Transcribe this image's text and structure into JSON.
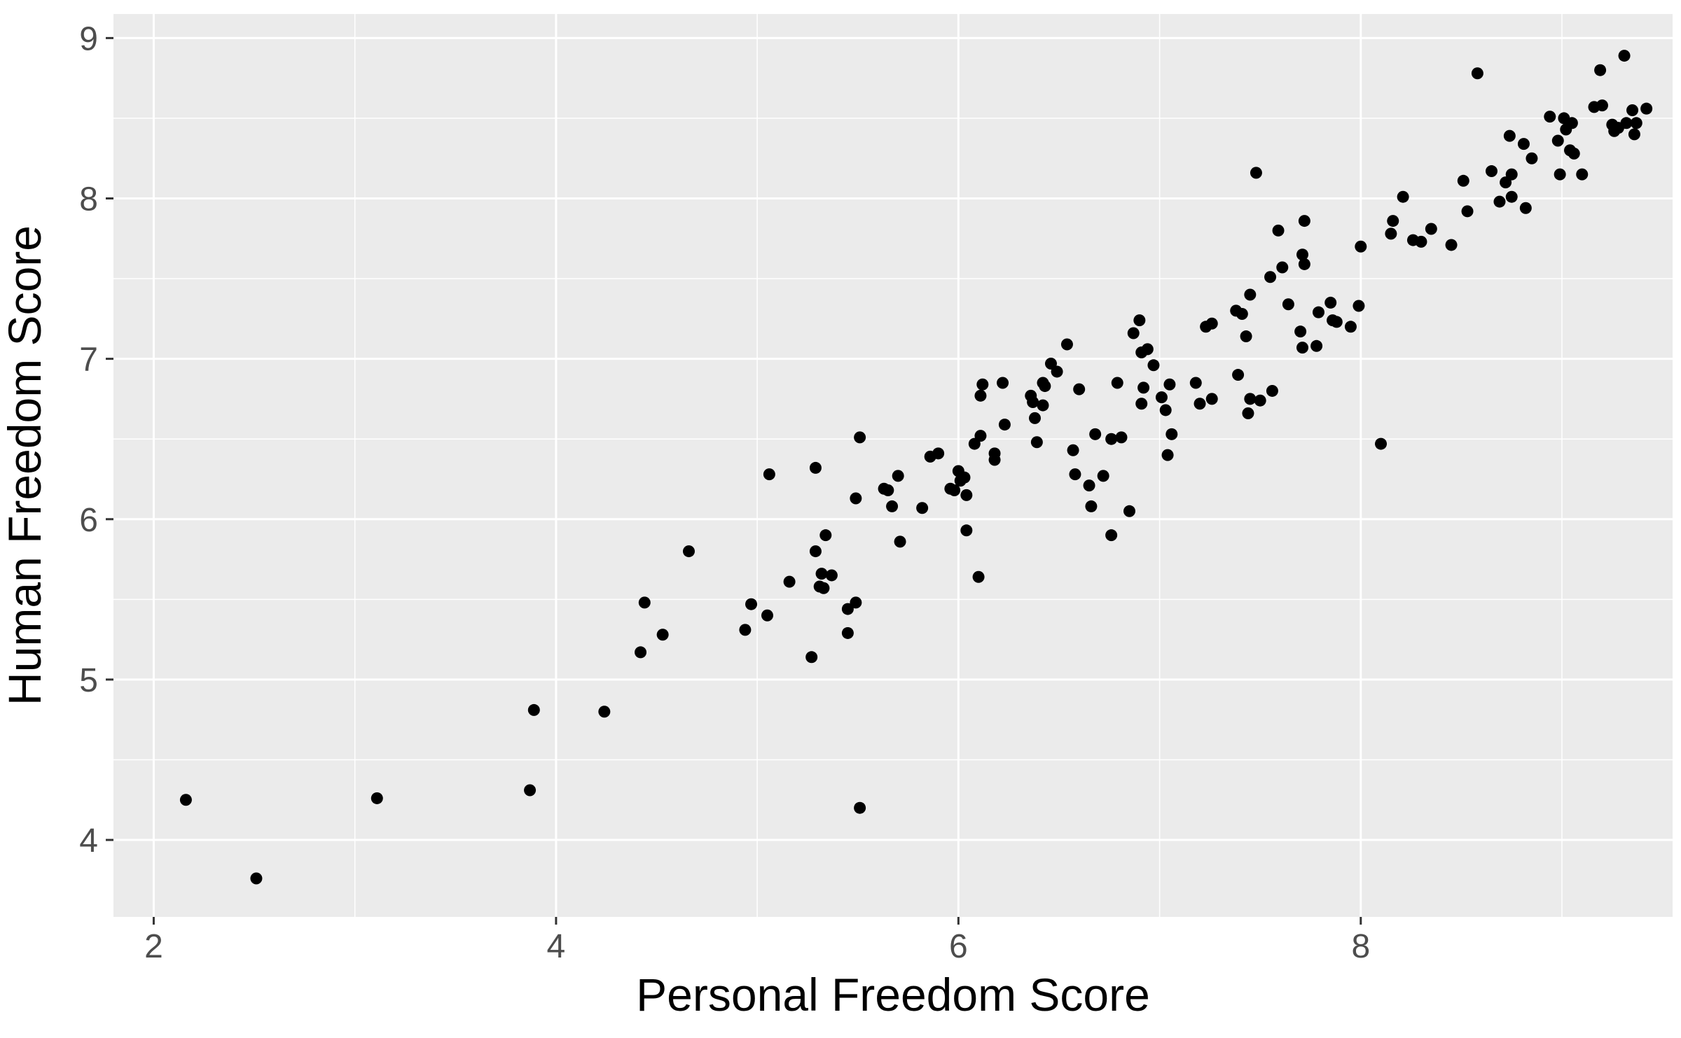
{
  "chart_data": {
    "type": "scatter",
    "title": "",
    "xlabel": "Personal Freedom Score",
    "ylabel": "Human Freedom Score",
    "xlim": [
      1.8,
      9.55
    ],
    "ylim": [
      3.52,
      9.15
    ],
    "x_ticks": [
      2,
      4,
      6,
      8
    ],
    "y_ticks": [
      4,
      5,
      6,
      7,
      8,
      9
    ],
    "grid": true,
    "legend": "none",
    "colors": {
      "panel": "#ebebeb",
      "grid": "#ffffff",
      "point": "#000000",
      "tick": "#333333"
    },
    "points": [
      [
        2.16,
        4.25
      ],
      [
        2.51,
        3.76
      ],
      [
        3.11,
        4.26
      ],
      [
        3.87,
        4.31
      ],
      [
        3.89,
        4.81
      ],
      [
        4.24,
        4.8
      ],
      [
        4.42,
        5.17
      ],
      [
        4.44,
        5.48
      ],
      [
        4.53,
        5.28
      ],
      [
        4.66,
        5.8
      ],
      [
        4.94,
        5.31
      ],
      [
        4.97,
        5.47
      ],
      [
        5.05,
        5.4
      ],
      [
        5.06,
        6.28
      ],
      [
        5.16,
        5.61
      ],
      [
        5.27,
        5.14
      ],
      [
        5.29,
        5.8
      ],
      [
        5.29,
        6.32
      ],
      [
        5.31,
        5.58
      ],
      [
        5.32,
        5.66
      ],
      [
        5.33,
        5.57
      ],
      [
        5.34,
        5.9
      ],
      [
        5.37,
        5.65
      ],
      [
        5.45,
        5.44
      ],
      [
        5.45,
        5.29
      ],
      [
        5.49,
        5.48
      ],
      [
        5.49,
        6.13
      ],
      [
        5.51,
        6.51
      ],
      [
        5.51,
        4.2
      ],
      [
        5.63,
        6.19
      ],
      [
        5.65,
        6.18
      ],
      [
        5.67,
        6.08
      ],
      [
        5.7,
        6.27
      ],
      [
        5.71,
        5.86
      ],
      [
        5.82,
        6.07
      ],
      [
        5.86,
        6.39
      ],
      [
        5.9,
        6.41
      ],
      [
        5.96,
        6.19
      ],
      [
        5.98,
        6.18
      ],
      [
        6.0,
        6.3
      ],
      [
        6.01,
        6.24
      ],
      [
        6.03,
        6.26
      ],
      [
        6.04,
        6.15
      ],
      [
        6.04,
        5.93
      ],
      [
        6.08,
        6.47
      ],
      [
        6.1,
        5.64
      ],
      [
        6.11,
        6.52
      ],
      [
        6.11,
        6.77
      ],
      [
        6.12,
        6.84
      ],
      [
        6.18,
        6.41
      ],
      [
        6.18,
        6.37
      ],
      [
        6.22,
        6.85
      ],
      [
        6.23,
        6.59
      ],
      [
        6.36,
        6.77
      ],
      [
        6.37,
        6.73
      ],
      [
        6.38,
        6.63
      ],
      [
        6.39,
        6.48
      ],
      [
        6.42,
        6.71
      ],
      [
        6.42,
        6.85
      ],
      [
        6.43,
        6.83
      ],
      [
        6.46,
        6.97
      ],
      [
        6.49,
        6.92
      ],
      [
        6.54,
        7.09
      ],
      [
        6.57,
        6.43
      ],
      [
        6.58,
        6.28
      ],
      [
        6.6,
        6.81
      ],
      [
        6.65,
        6.21
      ],
      [
        6.66,
        6.08
      ],
      [
        6.68,
        6.53
      ],
      [
        6.72,
        6.27
      ],
      [
        6.76,
        5.9
      ],
      [
        6.76,
        6.5
      ],
      [
        6.79,
        6.85
      ],
      [
        6.81,
        6.51
      ],
      [
        6.85,
        6.05
      ],
      [
        6.87,
        7.16
      ],
      [
        6.9,
        7.24
      ],
      [
        6.91,
        6.72
      ],
      [
        6.91,
        7.04
      ],
      [
        6.92,
        6.82
      ],
      [
        6.94,
        7.06
      ],
      [
        6.97,
        6.96
      ],
      [
        7.01,
        6.76
      ],
      [
        7.03,
        6.68
      ],
      [
        7.04,
        6.4
      ],
      [
        7.05,
        6.84
      ],
      [
        7.06,
        6.53
      ],
      [
        7.18,
        6.85
      ],
      [
        7.2,
        6.72
      ],
      [
        7.23,
        7.2
      ],
      [
        7.26,
        6.75
      ],
      [
        7.26,
        7.22
      ],
      [
        7.38,
        7.3
      ],
      [
        7.39,
        6.9
      ],
      [
        7.41,
        7.28
      ],
      [
        7.43,
        7.14
      ],
      [
        7.44,
        6.66
      ],
      [
        7.45,
        6.75
      ],
      [
        7.45,
        7.4
      ],
      [
        7.48,
        8.16
      ],
      [
        7.5,
        6.74
      ],
      [
        7.55,
        7.51
      ],
      [
        7.56,
        6.8
      ],
      [
        7.59,
        7.8
      ],
      [
        7.61,
        7.57
      ],
      [
        7.64,
        7.34
      ],
      [
        7.7,
        7.17
      ],
      [
        7.71,
        7.07
      ],
      [
        7.71,
        7.65
      ],
      [
        7.72,
        7.86
      ],
      [
        7.72,
        7.59
      ],
      [
        7.78,
        7.08
      ],
      [
        7.79,
        7.29
      ],
      [
        7.85,
        7.35
      ],
      [
        7.86,
        7.24
      ],
      [
        7.88,
        7.23
      ],
      [
        7.95,
        7.2
      ],
      [
        7.99,
        7.33
      ],
      [
        8.0,
        7.7
      ],
      [
        8.1,
        6.47
      ],
      [
        8.15,
        7.78
      ],
      [
        8.16,
        7.86
      ],
      [
        8.21,
        8.01
      ],
      [
        8.26,
        7.74
      ],
      [
        8.3,
        7.73
      ],
      [
        8.35,
        7.81
      ],
      [
        8.45,
        7.71
      ],
      [
        8.51,
        8.11
      ],
      [
        8.53,
        7.92
      ],
      [
        8.58,
        8.78
      ],
      [
        8.65,
        8.17
      ],
      [
        8.69,
        7.98
      ],
      [
        8.72,
        8.1
      ],
      [
        8.74,
        8.39
      ],
      [
        8.75,
        8.01
      ],
      [
        8.75,
        8.15
      ],
      [
        8.81,
        8.34
      ],
      [
        8.82,
        7.94
      ],
      [
        8.85,
        8.25
      ],
      [
        8.94,
        8.51
      ],
      [
        8.98,
        8.36
      ],
      [
        8.99,
        8.15
      ],
      [
        9.01,
        8.5
      ],
      [
        9.02,
        8.43
      ],
      [
        9.04,
        8.3
      ],
      [
        9.05,
        8.47
      ],
      [
        9.06,
        8.28
      ],
      [
        9.1,
        8.15
      ],
      [
        9.16,
        8.57
      ],
      [
        9.19,
        8.8
      ],
      [
        9.2,
        8.58
      ],
      [
        9.25,
        8.46
      ],
      [
        9.26,
        8.42
      ],
      [
        9.28,
        8.44
      ],
      [
        9.31,
        8.89
      ],
      [
        9.32,
        8.47
      ],
      [
        9.35,
        8.55
      ],
      [
        9.36,
        8.4
      ],
      [
        9.37,
        8.47
      ],
      [
        9.42,
        8.56
      ]
    ]
  }
}
